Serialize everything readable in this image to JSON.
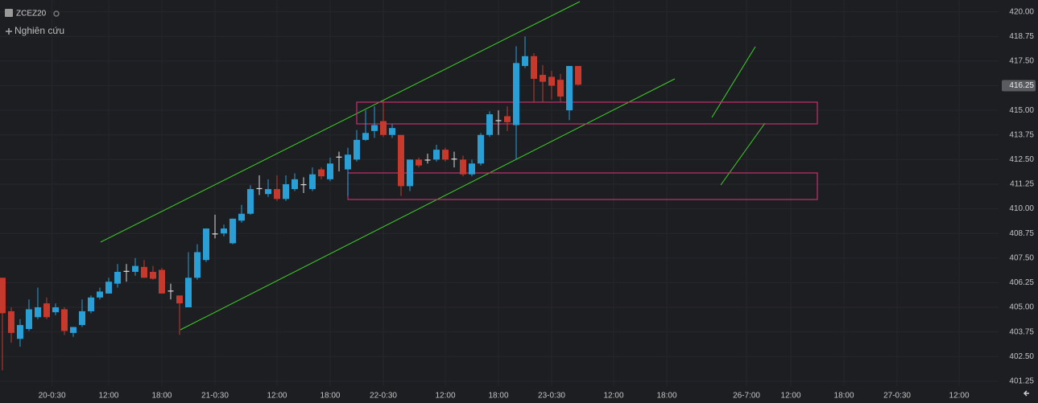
{
  "chart_data": {
    "type": "candlestick",
    "title": "ZCEZ20",
    "subtitle": "Nghiên cứu",
    "up_color": "#2a9fd6",
    "down_color": "#c63a2e",
    "grid": true,
    "x": [
      0,
      1,
      2,
      3,
      4,
      5,
      6,
      7,
      8,
      9,
      10,
      11,
      12,
      13,
      14,
      15,
      16,
      17,
      18,
      19,
      20,
      21,
      22,
      23,
      24,
      25,
      26,
      27,
      28,
      29,
      30,
      31,
      32,
      33,
      34,
      35,
      36,
      37,
      38,
      39,
      40,
      41,
      42,
      43,
      44,
      45,
      46,
      47,
      48,
      49,
      50,
      51,
      52,
      53,
      54,
      55,
      56,
      57,
      58,
      59,
      60,
      61,
      62,
      63,
      64,
      65
    ],
    "open": [
      406.5,
      404.8,
      403.4,
      403.9,
      404.5,
      405.2,
      404.75,
      404.9,
      403.7,
      404.1,
      404.8,
      405.5,
      405.7,
      406.2,
      406.8,
      406.8,
      407.05,
      406.8,
      406.9,
      405.8,
      405.6,
      405.0,
      406.5,
      407.4,
      408.7,
      408.75,
      408.25,
      409.4,
      409.75,
      411.0,
      410.75,
      411.0,
      410.5,
      411.0,
      411.2,
      411.0,
      412.0,
      411.5,
      412.6,
      412.0,
      412.5,
      413.5,
      413.95,
      414.45,
      413.75,
      413.75,
      411.15,
      412.5,
      412.45,
      412.5,
      413.0,
      412.5,
      412.5,
      411.75,
      412.3,
      413.75,
      414.45,
      414.7,
      414.25,
      417.25,
      417.75,
      416.8,
      416.7,
      416.55,
      415.0,
      417.25
    ],
    "high": [
      406.5,
      405.0,
      404.4,
      405.4,
      406.0,
      405.5,
      405.2,
      405.0,
      403.9,
      405.4,
      405.6,
      406.0,
      406.5,
      407.2,
      407.2,
      407.5,
      407.4,
      407.1,
      407.0,
      406.2,
      405.6,
      407.8,
      408.2,
      409.0,
      409.7,
      409.2,
      409.5,
      410.2,
      411.2,
      411.7,
      411.5,
      411.7,
      411.7,
      411.8,
      411.6,
      412.1,
      412.1,
      412.6,
      412.9,
      413.1,
      414.0,
      415.0,
      415.2,
      415.5,
      414.3,
      413.75,
      412.5,
      412.6,
      412.8,
      413.25,
      413.1,
      412.9,
      412.7,
      412.5,
      413.85,
      414.95,
      415.0,
      415.2,
      418.25,
      418.75,
      417.9,
      417.3,
      417.0,
      416.85,
      417.25,
      417.25
    ],
    "low": [
      401.8,
      403.2,
      403.0,
      403.8,
      404.4,
      404.4,
      404.6,
      403.6,
      403.5,
      404.0,
      404.7,
      405.4,
      405.7,
      406.0,
      406.3,
      406.6,
      406.5,
      406.4,
      405.7,
      405.4,
      403.6,
      405.0,
      406.4,
      407.3,
      408.5,
      408.6,
      408.2,
      409.3,
      409.7,
      410.7,
      410.6,
      410.4,
      410.4,
      410.9,
      410.8,
      410.9,
      411.5,
      411.4,
      411.9,
      410.65,
      412.4,
      413.45,
      413.6,
      413.65,
      413.6,
      410.65,
      410.9,
      412.1,
      412.3,
      412.4,
      412.4,
      412.1,
      411.65,
      411.65,
      412.2,
      413.65,
      413.75,
      413.95,
      412.5,
      417.15,
      415.4,
      415.4,
      415.55,
      415.4,
      414.5,
      416.25
    ],
    "close": [
      404.7,
      403.7,
      404.1,
      404.9,
      405.0,
      404.5,
      405.0,
      403.8,
      404.0,
      404.8,
      405.5,
      405.8,
      406.3,
      406.8,
      406.85,
      407.1,
      406.5,
      406.45,
      405.7,
      405.85,
      405.2,
      406.5,
      407.8,
      409.0,
      408.75,
      409.0,
      409.5,
      409.75,
      411.0,
      411.05,
      411.0,
      410.5,
      411.25,
      411.5,
      411.25,
      411.75,
      411.65,
      412.3,
      412.65,
      412.75,
      413.5,
      413.85,
      414.25,
      413.75,
      414.1,
      411.15,
      412.5,
      412.2,
      412.5,
      413.0,
      412.5,
      412.55,
      411.75,
      412.3,
      413.75,
      414.8,
      414.5,
      414.4,
      417.4,
      417.75,
      416.6,
      416.45,
      416.25,
      415.7,
      417.25,
      416.3
    ],
    "last_price": 416.25,
    "ylim": [
      420.6,
      401.0
    ],
    "yticks": [
      {
        "value": 420,
        "label": "420.00"
      },
      418.75,
      {
        "value": 417.5,
        "label": "417.50"
      },
      416.25,
      {
        "value": 415,
        "label": "415.00"
      },
      413.75,
      {
        "value": 412.5,
        "label": "412.50"
      },
      411.25,
      {
        "value": 410,
        "label": "410.00"
      },
      408.75,
      {
        "value": 407.5,
        "label": "407.50"
      },
      406.25,
      {
        "value": 405,
        "label": "405.00"
      },
      403.75,
      {
        "value": 402.5,
        "label": "402.50"
      },
      401.25
    ],
    "xlim": [
      -0.27,
      112.45
    ],
    "xticks": [
      {
        "value": 5.6,
        "label": "20-0:30"
      },
      {
        "value": 12,
        "label": "12:00"
      },
      {
        "value": 18,
        "label": "18:00"
      },
      {
        "value": 24,
        "label": "21-0:30"
      },
      {
        "value": 31,
        "label": "12:00"
      },
      {
        "value": 37,
        "label": "18:00"
      },
      {
        "value": 43,
        "label": "22-0:30"
      },
      {
        "value": 50,
        "label": "12:00"
      },
      {
        "value": 56,
        "label": "18:00"
      },
      {
        "value": 62,
        "label": "23-0:30"
      },
      {
        "value": 69,
        "label": "12:00"
      },
      {
        "value": 75,
        "label": "18:00"
      },
      {
        "value": 84,
        "label": "26-7:00"
      },
      {
        "value": 89,
        "label": "12:00"
      },
      {
        "value": 95,
        "label": "18:00"
      },
      {
        "value": 101,
        "label": "27-0:30"
      },
      {
        "value": 108,
        "label": "12:00"
      }
    ]
  }
}
